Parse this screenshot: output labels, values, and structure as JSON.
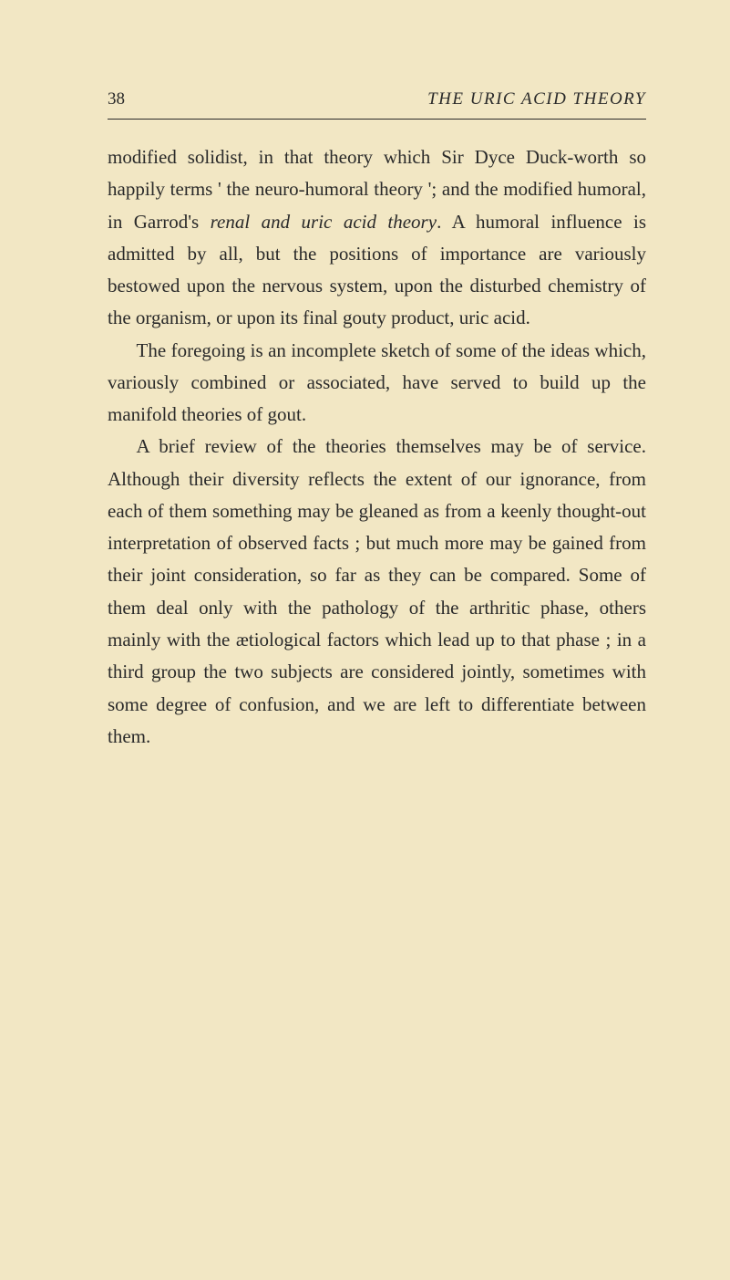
{
  "header": {
    "page_number": "38",
    "running_title": "THE URIC ACID THEORY"
  },
  "paragraphs": {
    "p1_part1": "modified solidist, in that theory which Sir Dyce Duck-worth so happily terms ' the neuro-humoral theory '; and the modified humoral, in Garrod's ",
    "p1_italic1": "renal and uric acid theory",
    "p1_part2": ". A humoral influence is admitted by all, but the positions of importance are variously bestowed upon the nervous system, upon the disturbed chemistry of the organism, or upon its final gouty product, uric acid.",
    "p2": "The foregoing is an incomplete sketch of some of the ideas which, variously combined or associated, have served to build up the manifold theories of gout.",
    "p3": "A brief review of the theories themselves may be of service. Although their diversity reflects the extent of our ignorance, from each of them something may be gleaned as from a keenly thought-out interpretation of observed facts ; but much more may be gained from their joint consideration, so far as they can be compared. Some of them deal only with the pathology of the arthritic phase, others mainly with the ætiological factors which lead up to that phase ; in a third group the two subjects are considered jointly, sometimes with some degree of confusion, and we are left to differentiate between them."
  },
  "colors": {
    "background": "#f2e7c4",
    "text": "#2a2a2a",
    "rule": "#2a2a2a"
  },
  "typography": {
    "body_font_size": 21,
    "header_font_size": 19,
    "line_height": 1.68
  }
}
